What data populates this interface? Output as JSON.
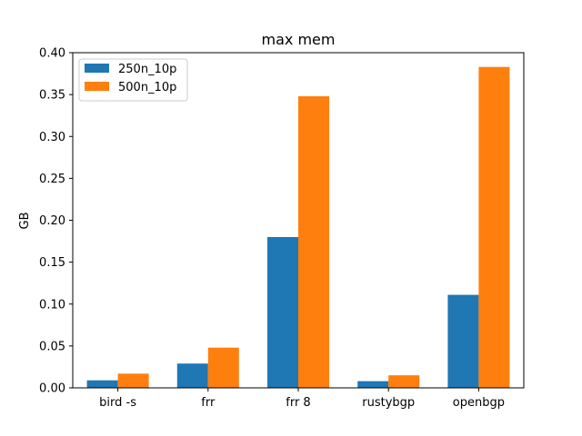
{
  "chart_data": {
    "type": "bar",
    "title": "max mem",
    "xlabel": "",
    "ylabel": "GB",
    "categories": [
      "bird -s",
      "frr",
      "frr 8",
      "rustybgp",
      "openbgp"
    ],
    "series": [
      {
        "name": "250n_10p",
        "color": "#1f77b4",
        "values": [
          0.009,
          0.029,
          0.18,
          0.008,
          0.111
        ]
      },
      {
        "name": "500n_10p",
        "color": "#ff7f0e",
        "values": [
          0.017,
          0.048,
          0.348,
          0.015,
          0.383
        ]
      }
    ],
    "ylim": [
      0,
      0.4
    ],
    "yticks": [
      "0.00",
      "0.05",
      "0.10",
      "0.15",
      "0.20",
      "0.25",
      "0.30",
      "0.35",
      "0.40"
    ],
    "grid": false,
    "legend_position": "top-left"
  }
}
